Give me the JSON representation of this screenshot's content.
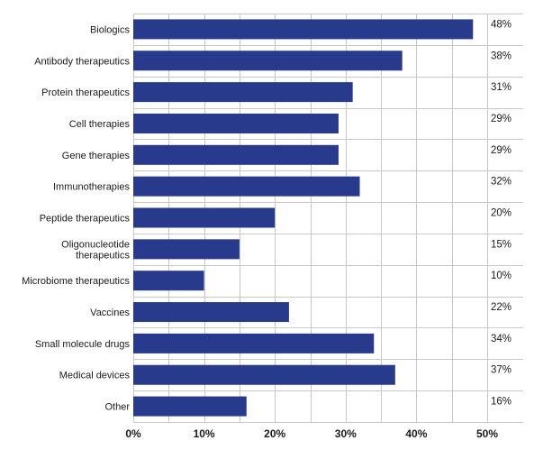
{
  "chart_data": {
    "type": "bar",
    "orientation": "horizontal",
    "categories": [
      "Biologics",
      "Antibody therapeutics",
      "Protein therapeutics",
      "Cell therapies",
      "Gene therapies",
      "Immunotherapies",
      "Peptide therapeutics",
      "Oligonucleotide therapeutics",
      "Microbiome therapeutics",
      "Vaccines",
      "Small molecule drugs",
      "Medical devices",
      "Other"
    ],
    "values": [
      48,
      38,
      31,
      29,
      29,
      32,
      20,
      15,
      10,
      22,
      34,
      37,
      16
    ],
    "value_labels": [
      "48%",
      "38%",
      "31%",
      "29%",
      "29%",
      "32%",
      "20%",
      "15%",
      "10%",
      "22%",
      "34%",
      "37%",
      "16%"
    ],
    "xlim": [
      0,
      50
    ],
    "xticks": [
      "0%",
      "10%",
      "20%",
      "30%",
      "40%",
      "50%"
    ],
    "title": "",
    "xlabel": "",
    "ylabel": "",
    "grid": true,
    "colors": {
      "bar": "#283a8c",
      "grid": "#c8c8c8",
      "text": "#1a1a1a"
    }
  }
}
